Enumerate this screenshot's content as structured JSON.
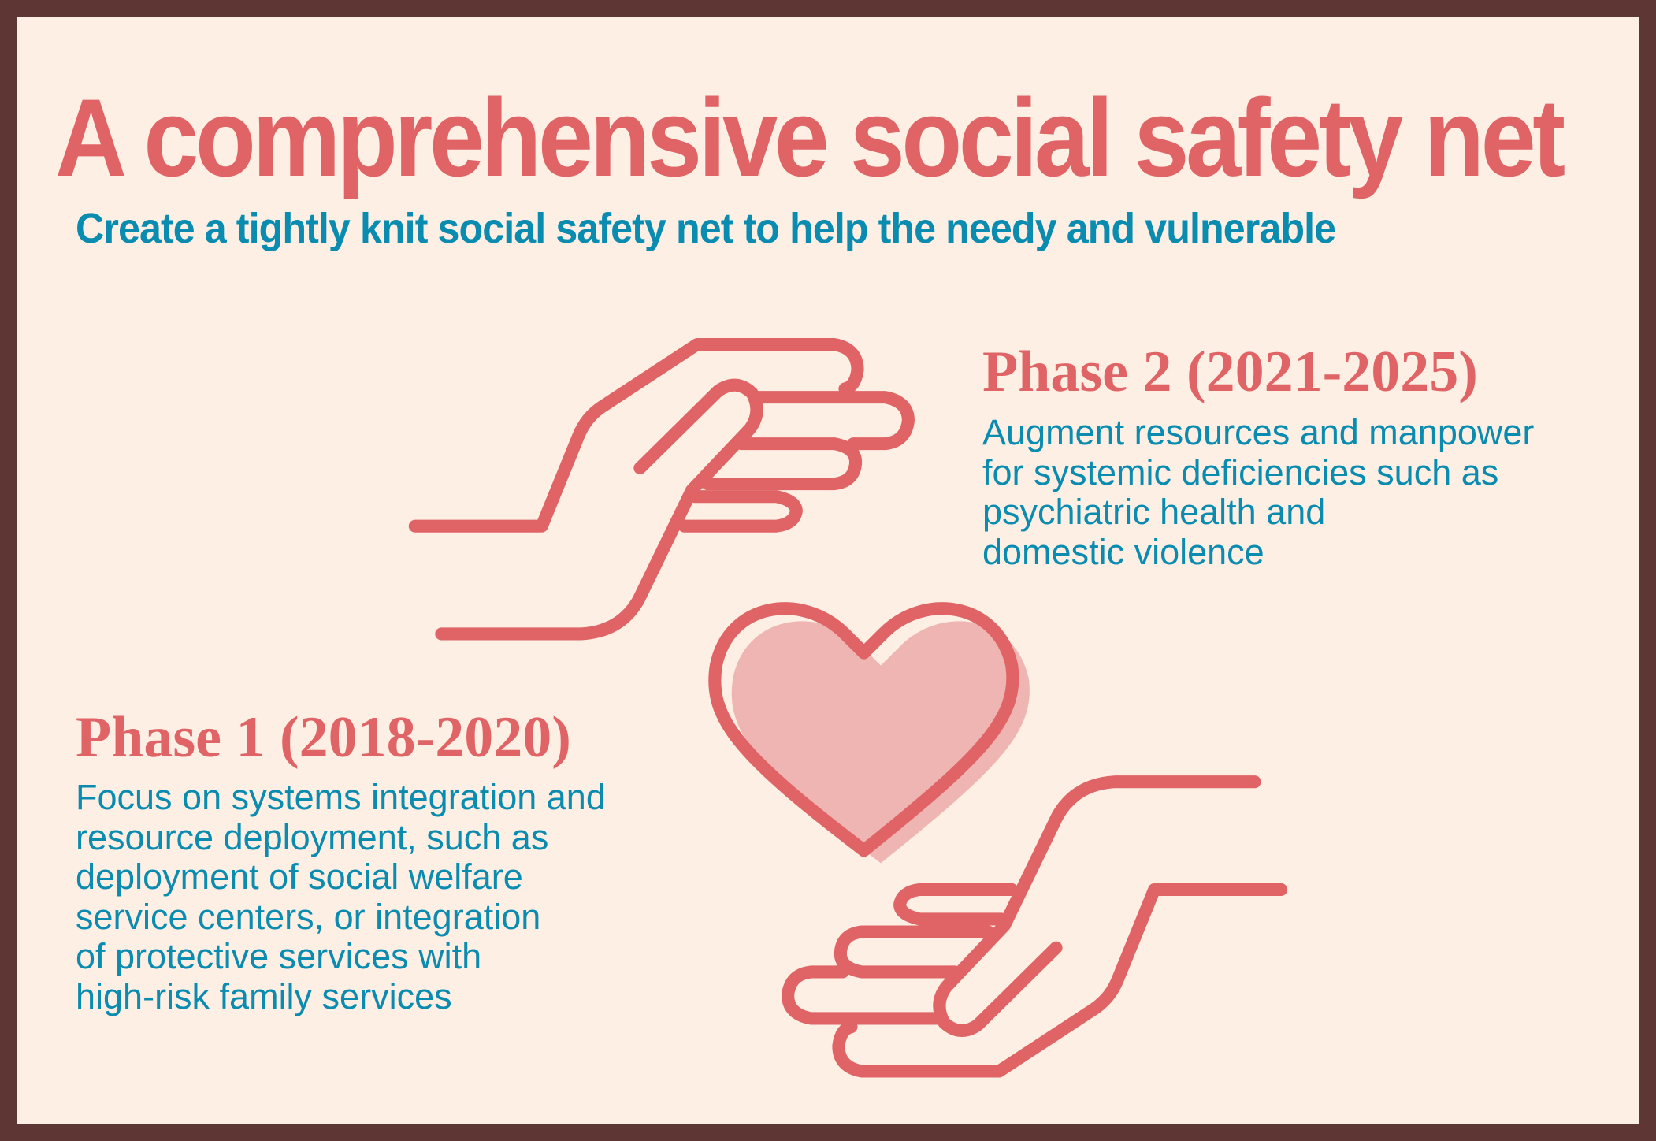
{
  "colors": {
    "background": "#fdefe4",
    "border": "#5e3633",
    "accent_red": "#e06466",
    "accent_teal": "#0a8bb0",
    "heart_fill": "#efb5b3"
  },
  "title": "A comprehensive social safety net",
  "subtitle": "Create a tightly knit social safety net to help the needy and vulnerable",
  "phase2": {
    "heading": "Phase 2 (2021-2025)",
    "lines": [
      "Augment resources and manpower",
      "for systemic deficiencies such as",
      "psychiatric health and",
      "domestic violence"
    ]
  },
  "phase1": {
    "heading": "Phase 1 (2018-2020)",
    "lines": [
      "Focus on systems integration and",
      "resource deployment, such as",
      "deployment of social welfare",
      "service centers, or integration",
      "of protective services with",
      "high-risk family services"
    ]
  },
  "icons": [
    "giving-hand-icon",
    "heart-icon",
    "receiving-hand-icon"
  ]
}
